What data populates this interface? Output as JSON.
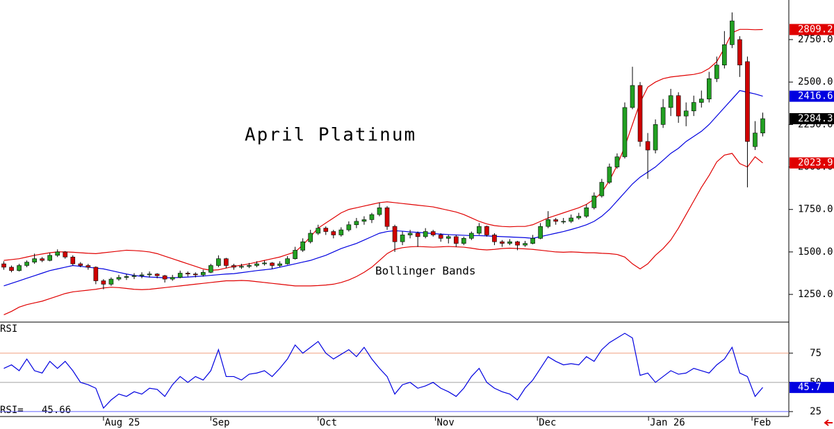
{
  "chart_data": [
    {
      "type": "candlestick",
      "title": "April Platinum",
      "annotation": "Bollinger Bands",
      "up_color": "#22a022",
      "down_color": "#d00000",
      "close_box_color": "#000000",
      "xlim": [
        -0.5,
        102.4
      ],
      "xticks": [
        {
          "value": 13,
          "label": "Aug 25"
        },
        {
          "value": 27,
          "label": "Sep"
        },
        {
          "value": 41,
          "label": "Oct"
        },
        {
          "value": 56.3,
          "label": "Nov"
        },
        {
          "value": 69.6,
          "label": "Dec"
        },
        {
          "value": 84.1,
          "label": "Jan 26"
        },
        {
          "value": 97.6,
          "label": "Feb"
        }
      ],
      "ylim": [
        1091,
        2983
      ],
      "yticks": [
        {
          "value": 1250,
          "label": "1250.0"
        },
        {
          "value": 1500,
          "label": "1500.0"
        },
        {
          "value": 1750,
          "label": "1750.0"
        },
        {
          "value": 2000,
          "label": "2000.0"
        },
        {
          "value": 2250,
          "label": "2250.0"
        },
        {
          "value": 2500,
          "label": "2500.0"
        },
        {
          "value": 2750,
          "label": "2750.0"
        }
      ],
      "candles": [
        [
          1430,
          1445,
          1395,
          1410
        ],
        [
          1410,
          1420,
          1380,
          1390
        ],
        [
          1390,
          1430,
          1385,
          1420
        ],
        [
          1420,
          1450,
          1410,
          1440
        ],
        [
          1440,
          1490,
          1430,
          1460
        ],
        [
          1460,
          1470,
          1440,
          1450
        ],
        [
          1450,
          1495,
          1445,
          1480
        ],
        [
          1480,
          1515,
          1470,
          1500
        ],
        [
          1500,
          1505,
          1460,
          1470
        ],
        [
          1470,
          1480,
          1420,
          1430
        ],
        [
          1430,
          1440,
          1410,
          1420
        ],
        [
          1420,
          1430,
          1395,
          1410
        ],
        [
          1410,
          1415,
          1310,
          1330
        ],
        [
          1330,
          1340,
          1280,
          1310
        ],
        [
          1310,
          1350,
          1300,
          1340
        ],
        [
          1340,
          1365,
          1330,
          1350
        ],
        [
          1350,
          1370,
          1335,
          1355
        ],
        [
          1355,
          1375,
          1340,
          1360
        ],
        [
          1360,
          1380,
          1345,
          1365
        ],
        [
          1365,
          1385,
          1350,
          1370
        ],
        [
          1370,
          1375,
          1345,
          1360
        ],
        [
          1360,
          1365,
          1320,
          1340
        ],
        [
          1340,
          1365,
          1330,
          1350
        ],
        [
          1350,
          1390,
          1345,
          1375
        ],
        [
          1375,
          1385,
          1355,
          1370
        ],
        [
          1370,
          1380,
          1350,
          1365
        ],
        [
          1365,
          1395,
          1355,
          1380
        ],
        [
          1380,
          1430,
          1375,
          1420
        ],
        [
          1420,
          1480,
          1410,
          1460
        ],
        [
          1460,
          1465,
          1405,
          1420
        ],
        [
          1420,
          1430,
          1395,
          1410
        ],
        [
          1410,
          1430,
          1400,
          1415
        ],
        [
          1415,
          1435,
          1405,
          1420
        ],
        [
          1420,
          1445,
          1410,
          1430
        ],
        [
          1430,
          1450,
          1420,
          1435
        ],
        [
          1435,
          1440,
          1400,
          1420
        ],
        [
          1420,
          1445,
          1410,
          1430
        ],
        [
          1430,
          1475,
          1425,
          1460
        ],
        [
          1460,
          1530,
          1455,
          1510
        ],
        [
          1510,
          1580,
          1500,
          1560
        ],
        [
          1560,
          1630,
          1550,
          1610
        ],
        [
          1610,
          1660,
          1600,
          1640
        ],
        [
          1640,
          1650,
          1600,
          1620
        ],
        [
          1620,
          1630,
          1580,
          1600
        ],
        [
          1600,
          1645,
          1590,
          1630
        ],
        [
          1630,
          1680,
          1620,
          1660
        ],
        [
          1660,
          1700,
          1640,
          1680
        ],
        [
          1680,
          1710,
          1660,
          1690
        ],
        [
          1690,
          1730,
          1670,
          1720
        ],
        [
          1720,
          1790,
          1710,
          1760
        ],
        [
          1760,
          1770,
          1630,
          1650
        ],
        [
          1650,
          1660,
          1500,
          1560
        ],
        [
          1560,
          1620,
          1540,
          1600
        ],
        [
          1600,
          1630,
          1580,
          1610
        ],
        [
          1610,
          1620,
          1530,
          1590
        ],
        [
          1590,
          1640,
          1580,
          1620
        ],
        [
          1620,
          1630,
          1590,
          1600
        ],
        [
          1600,
          1610,
          1560,
          1580
        ],
        [
          1580,
          1600,
          1550,
          1590
        ],
        [
          1590,
          1600,
          1530,
          1550
        ],
        [
          1550,
          1590,
          1540,
          1580
        ],
        [
          1580,
          1620,
          1570,
          1610
        ],
        [
          1610,
          1670,
          1600,
          1650
        ],
        [
          1650,
          1655,
          1590,
          1600
        ],
        [
          1600,
          1610,
          1540,
          1560
        ],
        [
          1560,
          1570,
          1530,
          1550
        ],
        [
          1550,
          1575,
          1540,
          1560
        ],
        [
          1560,
          1565,
          1510,
          1540
        ],
        [
          1540,
          1565,
          1530,
          1550
        ],
        [
          1550,
          1600,
          1545,
          1580
        ],
        [
          1580,
          1670,
          1575,
          1650
        ],
        [
          1650,
          1740,
          1640,
          1690
        ],
        [
          1690,
          1700,
          1660,
          1680
        ],
        [
          1680,
          1700,
          1665,
          1680
        ],
        [
          1680,
          1720,
          1670,
          1700
        ],
        [
          1700,
          1730,
          1690,
          1710
        ],
        [
          1710,
          1780,
          1700,
          1760
        ],
        [
          1760,
          1850,
          1750,
          1830
        ],
        [
          1830,
          1930,
          1820,
          1910
        ],
        [
          1910,
          2020,
          1900,
          2000
        ],
        [
          2000,
          2080,
          1990,
          2060
        ],
        [
          2060,
          2380,
          2050,
          2350
        ],
        [
          2350,
          2590,
          2340,
          2480
        ],
        [
          2480,
          2500,
          2120,
          2150
        ],
        [
          2150,
          2200,
          1930,
          2100
        ],
        [
          2100,
          2280,
          2080,
          2250
        ],
        [
          2250,
          2400,
          2230,
          2350
        ],
        [
          2350,
          2460,
          2300,
          2420
        ],
        [
          2420,
          2440,
          2260,
          2300
        ],
        [
          2300,
          2380,
          2240,
          2330
        ],
        [
          2330,
          2420,
          2300,
          2380
        ],
        [
          2380,
          2450,
          2350,
          2400
        ],
        [
          2400,
          2560,
          2380,
          2520
        ],
        [
          2520,
          2650,
          2500,
          2600
        ],
        [
          2600,
          2800,
          2580,
          2720
        ],
        [
          2720,
          2910,
          2700,
          2860
        ],
        [
          2750,
          2770,
          2530,
          2600
        ],
        [
          2620,
          2650,
          1880,
          2150
        ],
        [
          2120,
          2270,
          2100,
          2200
        ],
        [
          2200,
          2320,
          2180,
          2284.3
        ]
      ],
      "bands": [
        {
          "color": "#e00000",
          "values": [
            1450,
            1455,
            1460,
            1470,
            1480,
            1488,
            1495,
            1500,
            1500,
            1498,
            1495,
            1492,
            1490,
            1495,
            1500,
            1505,
            1510,
            1508,
            1505,
            1500,
            1490,
            1475,
            1460,
            1445,
            1430,
            1415,
            1400,
            1392,
            1395,
            1405,
            1415,
            1422,
            1430,
            1440,
            1450,
            1460,
            1470,
            1485,
            1500,
            1540,
            1590,
            1640,
            1670,
            1700,
            1730,
            1750,
            1760,
            1770,
            1780,
            1790,
            1795,
            1790,
            1785,
            1780,
            1775,
            1770,
            1765,
            1755,
            1745,
            1735,
            1720,
            1700,
            1680,
            1665,
            1655,
            1650,
            1648,
            1650,
            1650,
            1660,
            1680,
            1700,
            1715,
            1730,
            1745,
            1760,
            1780,
            1810,
            1850,
            1920,
            2010,
            2120,
            2250,
            2380,
            2470,
            2500,
            2520,
            2530,
            2535,
            2540,
            2545,
            2555,
            2580,
            2620,
            2700,
            2790,
            2810,
            2810,
            2808,
            2809.2
          ]
        },
        {
          "color": "#0000e0",
          "values": [
            1300,
            1315,
            1330,
            1345,
            1360,
            1375,
            1390,
            1400,
            1410,
            1420,
            1415,
            1410,
            1405,
            1400,
            1390,
            1380,
            1370,
            1362,
            1356,
            1352,
            1350,
            1348,
            1348,
            1350,
            1352,
            1355,
            1358,
            1362,
            1366,
            1370,
            1372,
            1378,
            1384,
            1390,
            1395,
            1400,
            1410,
            1420,
            1430,
            1440,
            1450,
            1465,
            1480,
            1500,
            1520,
            1535,
            1550,
            1570,
            1590,
            1610,
            1620,
            1625,
            1622,
            1618,
            1615,
            1612,
            1608,
            1605,
            1602,
            1600,
            1598,
            1596,
            1596,
            1594,
            1592,
            1590,
            1588,
            1586,
            1584,
            1580,
            1590,
            1600,
            1610,
            1620,
            1632,
            1645,
            1660,
            1680,
            1710,
            1750,
            1800,
            1850,
            1900,
            1940,
            1970,
            2000,
            2040,
            2080,
            2110,
            2150,
            2180,
            2210,
            2250,
            2300,
            2350,
            2400,
            2450,
            2440,
            2430,
            2416.6
          ]
        },
        {
          "color": "#e00000",
          "values": [
            1130,
            1150,
            1175,
            1190,
            1200,
            1210,
            1225,
            1240,
            1255,
            1265,
            1270,
            1275,
            1280,
            1288,
            1292,
            1290,
            1285,
            1280,
            1278,
            1280,
            1285,
            1290,
            1295,
            1300,
            1305,
            1310,
            1315,
            1320,
            1325,
            1330,
            1330,
            1332,
            1330,
            1325,
            1320,
            1315,
            1310,
            1305,
            1300,
            1300,
            1300,
            1302,
            1305,
            1310,
            1320,
            1335,
            1355,
            1380,
            1410,
            1450,
            1490,
            1515,
            1525,
            1530,
            1532,
            1530,
            1528,
            1530,
            1532,
            1530,
            1528,
            1522,
            1515,
            1512,
            1515,
            1520,
            1522,
            1520,
            1518,
            1515,
            1510,
            1505,
            1500,
            1498,
            1500,
            1498,
            1495,
            1495,
            1492,
            1490,
            1485,
            1470,
            1430,
            1400,
            1430,
            1480,
            1520,
            1570,
            1640,
            1720,
            1800,
            1880,
            1950,
            2030,
            2070,
            2080,
            2020,
            2000,
            2060,
            2023.9
          ]
        }
      ]
    },
    {
      "type": "line",
      "name": "RSI",
      "readout_label": "RSI=",
      "color": "#0000e0",
      "last_value_label": "45.7",
      "ylim": [
        20.8,
        101
      ],
      "yticks": [
        25,
        50,
        75
      ],
      "tick_line_colors": [
        "#6060ff",
        "#a0a0a0",
        "#f0a080"
      ],
      "values": [
        62,
        65,
        60,
        70,
        60,
        58,
        68,
        62,
        68,
        60,
        50,
        48,
        45,
        28,
        35,
        40,
        38,
        42,
        40,
        45,
        44,
        38,
        48,
        55,
        50,
        55,
        52,
        60,
        78,
        55,
        55,
        52,
        57,
        58,
        60,
        55,
        62,
        70,
        82,
        75,
        80,
        85,
        75,
        70,
        74,
        78,
        72,
        80,
        70,
        62,
        55,
        40,
        48,
        50,
        45,
        47,
        50,
        45,
        42,
        38,
        45,
        55,
        62,
        50,
        45,
        42,
        40,
        35,
        45,
        52,
        62,
        72,
        68,
        65,
        66,
        65,
        72,
        68,
        78,
        84,
        88,
        92,
        88,
        56,
        58,
        50,
        55,
        60,
        57,
        58,
        62,
        60,
        58,
        65,
        70,
        80,
        58,
        55,
        38,
        45.66
      ]
    }
  ]
}
